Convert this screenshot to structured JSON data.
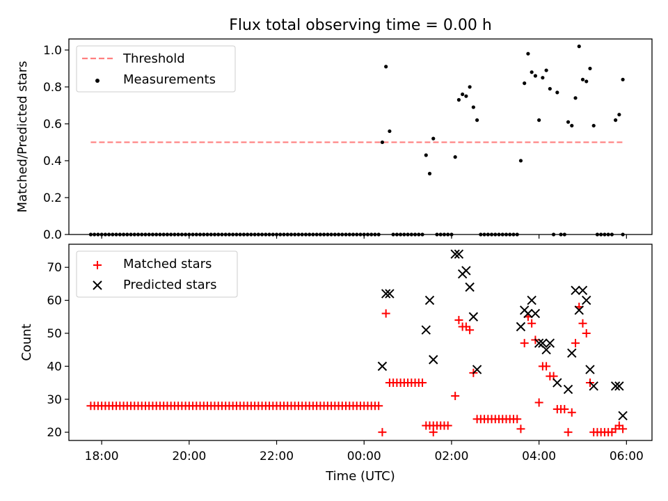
{
  "title": "Flux total observing time = 0.00 h",
  "colors": {
    "threshold": "#ff7f7f",
    "measurement": "#000000",
    "matched": "#ff0000",
    "predicted": "#000000",
    "legend_border": "#cccccc"
  },
  "chart_data": [
    {
      "type": "scatter",
      "panel": "top",
      "ylabel": "Matched/Predicted stars",
      "xlabel": "",
      "ylim": [
        0,
        1.06
      ],
      "yticks": [
        0,
        0.2,
        0.4,
        0.6,
        0.8,
        1.0
      ],
      "ytick_labels": [
        "0.0",
        "0.2",
        "0.4",
        "0.6",
        "0.8",
        "1.0"
      ],
      "legend_placement": "top-left",
      "series": [
        {
          "name": "Threshold",
          "style": "dashed-line",
          "x": [
            "17:45",
            "05:55"
          ],
          "y": [
            0.5,
            0.5
          ]
        },
        {
          "name": "Measurements",
          "style": "dot",
          "x": [
            "00:25",
            "00:30",
            "00:35",
            "01:25",
            "01:30",
            "01:35",
            "02:05",
            "02:10",
            "02:15",
            "02:20",
            "02:25",
            "02:30",
            "02:35",
            "03:35",
            "03:40",
            "03:45",
            "03:50",
            "03:55",
            "04:00",
            "04:05",
            "04:10",
            "04:15",
            "04:25",
            "04:40",
            "04:45",
            "04:50",
            "04:55",
            "05:00",
            "05:05",
            "05:10",
            "05:15",
            "05:45",
            "05:50",
            "05:55"
          ],
          "y": [
            0.5,
            0.91,
            0.56,
            0.43,
            0.33,
            0.52,
            0.42,
            0.73,
            0.76,
            0.75,
            0.8,
            0.69,
            0.62,
            0.4,
            0.82,
            0.98,
            0.88,
            0.86,
            0.62,
            0.85,
            0.89,
            0.79,
            0.77,
            0.61,
            0.59,
            0.74,
            1.02,
            0.84,
            0.83,
            0.9,
            0.59,
            0.62,
            0.65,
            0.84
          ]
        },
        {
          "name": "zero-measurements",
          "style": "dot",
          "x_range": [
            "17:45",
            "05:55"
          ],
          "y_value": 0,
          "step_minutes": 5,
          "excluded_x": [
            "00:25",
            "00:30",
            "00:35",
            "01:25",
            "01:30",
            "01:35",
            "02:05",
            "02:10",
            "02:15",
            "02:20",
            "02:25",
            "02:30",
            "02:35",
            "03:35",
            "03:40",
            "03:45",
            "03:50",
            "03:55",
            "04:00",
            "04:05",
            "04:10",
            "04:15",
            "04:25",
            "04:40",
            "04:45",
            "04:50",
            "04:55",
            "05:00",
            "05:05",
            "05:10",
            "05:15",
            "05:45",
            "05:50"
          ]
        }
      ]
    },
    {
      "type": "scatter",
      "panel": "bottom",
      "ylabel": "Count",
      "xlabel": "Time (UTC)",
      "ylim": [
        17.5,
        77
      ],
      "yticks": [
        20,
        30,
        40,
        50,
        60,
        70
      ],
      "ytick_labels": [
        "20",
        "30",
        "40",
        "50",
        "60",
        "70"
      ],
      "xlim": [
        "17:15",
        "06:35"
      ],
      "xticks": [
        "18:00",
        "20:00",
        "22:00",
        "00:00",
        "02:00",
        "04:00",
        "06:00"
      ],
      "legend_placement": "top-left",
      "series": [
        {
          "name": "Matched stars",
          "marker": "plus",
          "segments": [
            {
              "from": "17:45",
              "to": "00:20",
              "y": 28
            },
            {
              "from": "00:35",
              "to": "01:20",
              "y": 35
            },
            {
              "from": "01:30",
              "to": "01:55",
              "y": 22
            },
            {
              "from": "02:35",
              "to": "03:30",
              "y": 24
            },
            {
              "from": "05:15",
              "to": "05:40",
              "y": 20
            }
          ],
          "x": [
            "00:25",
            "00:30",
            "01:25",
            "01:35",
            "02:05",
            "02:10",
            "02:15",
            "02:20",
            "02:25",
            "02:30",
            "03:35",
            "03:40",
            "03:45",
            "03:50",
            "03:55",
            "04:00",
            "04:05",
            "04:10",
            "04:15",
            "04:20",
            "04:25",
            "04:30",
            "04:35",
            "04:40",
            "04:45",
            "04:50",
            "04:55",
            "05:00",
            "05:05",
            "05:10",
            "05:45",
            "05:50",
            "05:55"
          ],
          "y": [
            20,
            56,
            22,
            20,
            31,
            54,
            52,
            52,
            51,
            38,
            21,
            47,
            55,
            53,
            48,
            29,
            40,
            40,
            37,
            37,
            27,
            27,
            27,
            20,
            26,
            47,
            58,
            53,
            50,
            35,
            21,
            22,
            21
          ]
        },
        {
          "name": "Predicted stars",
          "marker": "x",
          "x": [
            "00:25",
            "00:30",
            "00:35",
            "01:25",
            "01:30",
            "01:35",
            "02:05",
            "02:10",
            "02:15",
            "02:20",
            "02:25",
            "02:30",
            "02:35",
            "03:35",
            "03:40",
            "03:45",
            "03:50",
            "03:55",
            "04:00",
            "04:05",
            "04:10",
            "04:15",
            "04:25",
            "04:40",
            "04:45",
            "04:50",
            "04:55",
            "05:00",
            "05:05",
            "05:10",
            "05:15",
            "05:45",
            "05:50",
            "05:55"
          ],
          "y": [
            40,
            62,
            62,
            51,
            60,
            42,
            74,
            74,
            68,
            69,
            64,
            55,
            39,
            52,
            57,
            56,
            60,
            56,
            47,
            47,
            45,
            47,
            35,
            33,
            44,
            63,
            57,
            63,
            60,
            39,
            34,
            34,
            34,
            25
          ]
        }
      ]
    }
  ]
}
